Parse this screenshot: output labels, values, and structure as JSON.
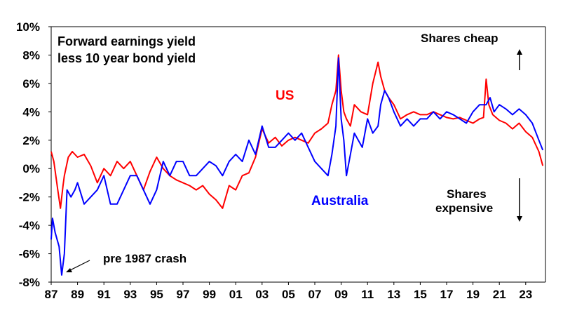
{
  "chart_data": {
    "type": "line",
    "title_lines": [
      "Forward earnings yield",
      "less 10 year bond yield"
    ],
    "x_tick_labels": [
      "87",
      "89",
      "91",
      "93",
      "95",
      "97",
      "99",
      "01",
      "03",
      "05",
      "07",
      "09",
      "11",
      "13",
      "15",
      "17",
      "19",
      "21",
      "23"
    ],
    "x_range": [
      1987,
      2024.5
    ],
    "y_tick_labels": [
      "10%",
      "8%",
      "6%",
      "4%",
      "2%",
      "0%",
      "-2%",
      "-4%",
      "-6%",
      "-8%"
    ],
    "ylim": [
      -8,
      10
    ],
    "grid": false,
    "colors": {
      "us": "#ff0000",
      "australia": "#0000ff"
    },
    "series_labels": {
      "us": "US",
      "australia": "Australia"
    },
    "annotations": {
      "shares_cheap": "Shares cheap",
      "shares_expensive_line1": "Shares",
      "shares_expensive_line2": "expensive",
      "crash": "pre 1987 crash"
    },
    "series": [
      {
        "name": "US",
        "x": [
          1987.0,
          1987.2,
          1987.5,
          1987.7,
          1987.9,
          1988.0,
          1988.3,
          1988.6,
          1989.0,
          1989.5,
          1990.0,
          1990.5,
          1991.0,
          1991.5,
          1992.0,
          1992.5,
          1993.0,
          1993.5,
          1994.0,
          1994.5,
          1995.0,
          1995.5,
          1996.0,
          1996.5,
          1997.0,
          1997.5,
          1998.0,
          1998.5,
          1999.0,
          1999.5,
          2000.0,
          2000.5,
          2001.0,
          2001.5,
          2002.0,
          2002.5,
          2003.0,
          2003.5,
          2004.0,
          2004.5,
          2005.0,
          2005.5,
          2006.0,
          2006.5,
          2007.0,
          2007.5,
          2008.0,
          2008.3,
          2008.6,
          2008.8,
          2009.0,
          2009.2,
          2009.4,
          2009.7,
          2010.0,
          2010.5,
          2011.0,
          2011.4,
          2011.8,
          2012.0,
          2012.3,
          2012.6,
          2013.0,
          2013.5,
          2014.0,
          2014.5,
          2015.0,
          2015.5,
          2016.0,
          2016.5,
          2017.0,
          2017.5,
          2018.0,
          2018.5,
          2019.0,
          2019.5,
          2019.8,
          2020.0,
          2020.2,
          2020.5,
          2021.0,
          2021.5,
          2022.0,
          2022.5,
          2023.0,
          2023.5,
          2024.0,
          2024.3
        ],
        "values": [
          1.2,
          0.5,
          -1.5,
          -2.8,
          -1.2,
          -0.5,
          0.8,
          1.2,
          0.8,
          1.0,
          0.2,
          -1.0,
          0.0,
          -0.5,
          0.5,
          0.0,
          0.5,
          -0.5,
          -1.5,
          -0.2,
          0.8,
          0.0,
          -0.5,
          -0.8,
          -1.0,
          -1.2,
          -1.5,
          -1.2,
          -1.8,
          -2.2,
          -2.8,
          -1.2,
          -1.5,
          -0.5,
          -0.3,
          0.8,
          2.8,
          1.8,
          2.2,
          1.6,
          2.0,
          2.2,
          2.0,
          1.8,
          2.5,
          2.8,
          3.2,
          4.5,
          5.5,
          8.0,
          5.5,
          4.0,
          3.5,
          3.0,
          4.5,
          4.0,
          3.8,
          6.0,
          7.5,
          6.5,
          5.5,
          5.0,
          4.5,
          3.5,
          3.8,
          4.0,
          3.8,
          3.8,
          4.0,
          3.8,
          3.6,
          3.5,
          3.6,
          3.4,
          3.2,
          3.5,
          3.6,
          6.3,
          4.5,
          3.8,
          3.4,
          3.2,
          2.8,
          3.2,
          2.6,
          2.2,
          1.2,
          0.2
        ]
      },
      {
        "name": "Australia",
        "x": [
          1987.0,
          1987.1,
          1987.3,
          1987.6,
          1987.8,
          1988.0,
          1988.2,
          1988.5,
          1988.8,
          1989.0,
          1989.5,
          1990.0,
          1990.5,
          1991.0,
          1991.5,
          1992.0,
          1992.5,
          1993.0,
          1993.5,
          1994.0,
          1994.5,
          1995.0,
          1995.5,
          1996.0,
          1996.5,
          1997.0,
          1997.5,
          1998.0,
          1998.5,
          1999.0,
          1999.5,
          2000.0,
          2000.5,
          2001.0,
          2001.5,
          2002.0,
          2002.5,
          2003.0,
          2003.5,
          2004.0,
          2004.5,
          2005.0,
          2005.5,
          2006.0,
          2006.5,
          2007.0,
          2007.5,
          2008.0,
          2008.3,
          2008.6,
          2008.8,
          2009.0,
          2009.2,
          2009.4,
          2009.7,
          2010.0,
          2010.3,
          2010.6,
          2011.0,
          2011.4,
          2011.8,
          2012.0,
          2012.3,
          2012.6,
          2013.0,
          2013.5,
          2014.0,
          2014.5,
          2015.0,
          2015.5,
          2016.0,
          2016.5,
          2017.0,
          2017.5,
          2018.0,
          2018.5,
          2019.0,
          2019.5,
          2020.0,
          2020.3,
          2020.6,
          2021.0,
          2021.5,
          2022.0,
          2022.5,
          2023.0,
          2023.5,
          2024.0,
          2024.3
        ],
        "values": [
          -5.0,
          -3.5,
          -4.5,
          -5.5,
          -7.5,
          -6.0,
          -1.5,
          -2.0,
          -1.5,
          -1.0,
          -2.5,
          -2.0,
          -1.5,
          -0.5,
          -2.5,
          -2.5,
          -1.5,
          -0.5,
          -0.5,
          -1.5,
          -2.5,
          -1.5,
          0.5,
          -0.5,
          0.5,
          0.5,
          -0.5,
          -0.5,
          0.0,
          0.5,
          0.2,
          -0.5,
          0.5,
          1.0,
          0.5,
          2.0,
          1.0,
          3.0,
          1.5,
          1.5,
          2.0,
          2.5,
          2.0,
          2.5,
          1.5,
          0.5,
          0.0,
          -0.5,
          1.0,
          3.0,
          7.8,
          3.5,
          2.0,
          -0.5,
          1.0,
          2.5,
          2.0,
          1.5,
          3.5,
          2.5,
          3.0,
          4.5,
          5.5,
          5.0,
          4.0,
          3.0,
          3.5,
          3.0,
          3.5,
          3.5,
          4.0,
          3.5,
          4.0,
          3.8,
          3.5,
          3.2,
          4.0,
          4.5,
          4.5,
          5.0,
          4.0,
          4.5,
          4.2,
          3.8,
          4.2,
          3.8,
          3.2,
          2.0,
          1.3
        ]
      }
    ]
  }
}
